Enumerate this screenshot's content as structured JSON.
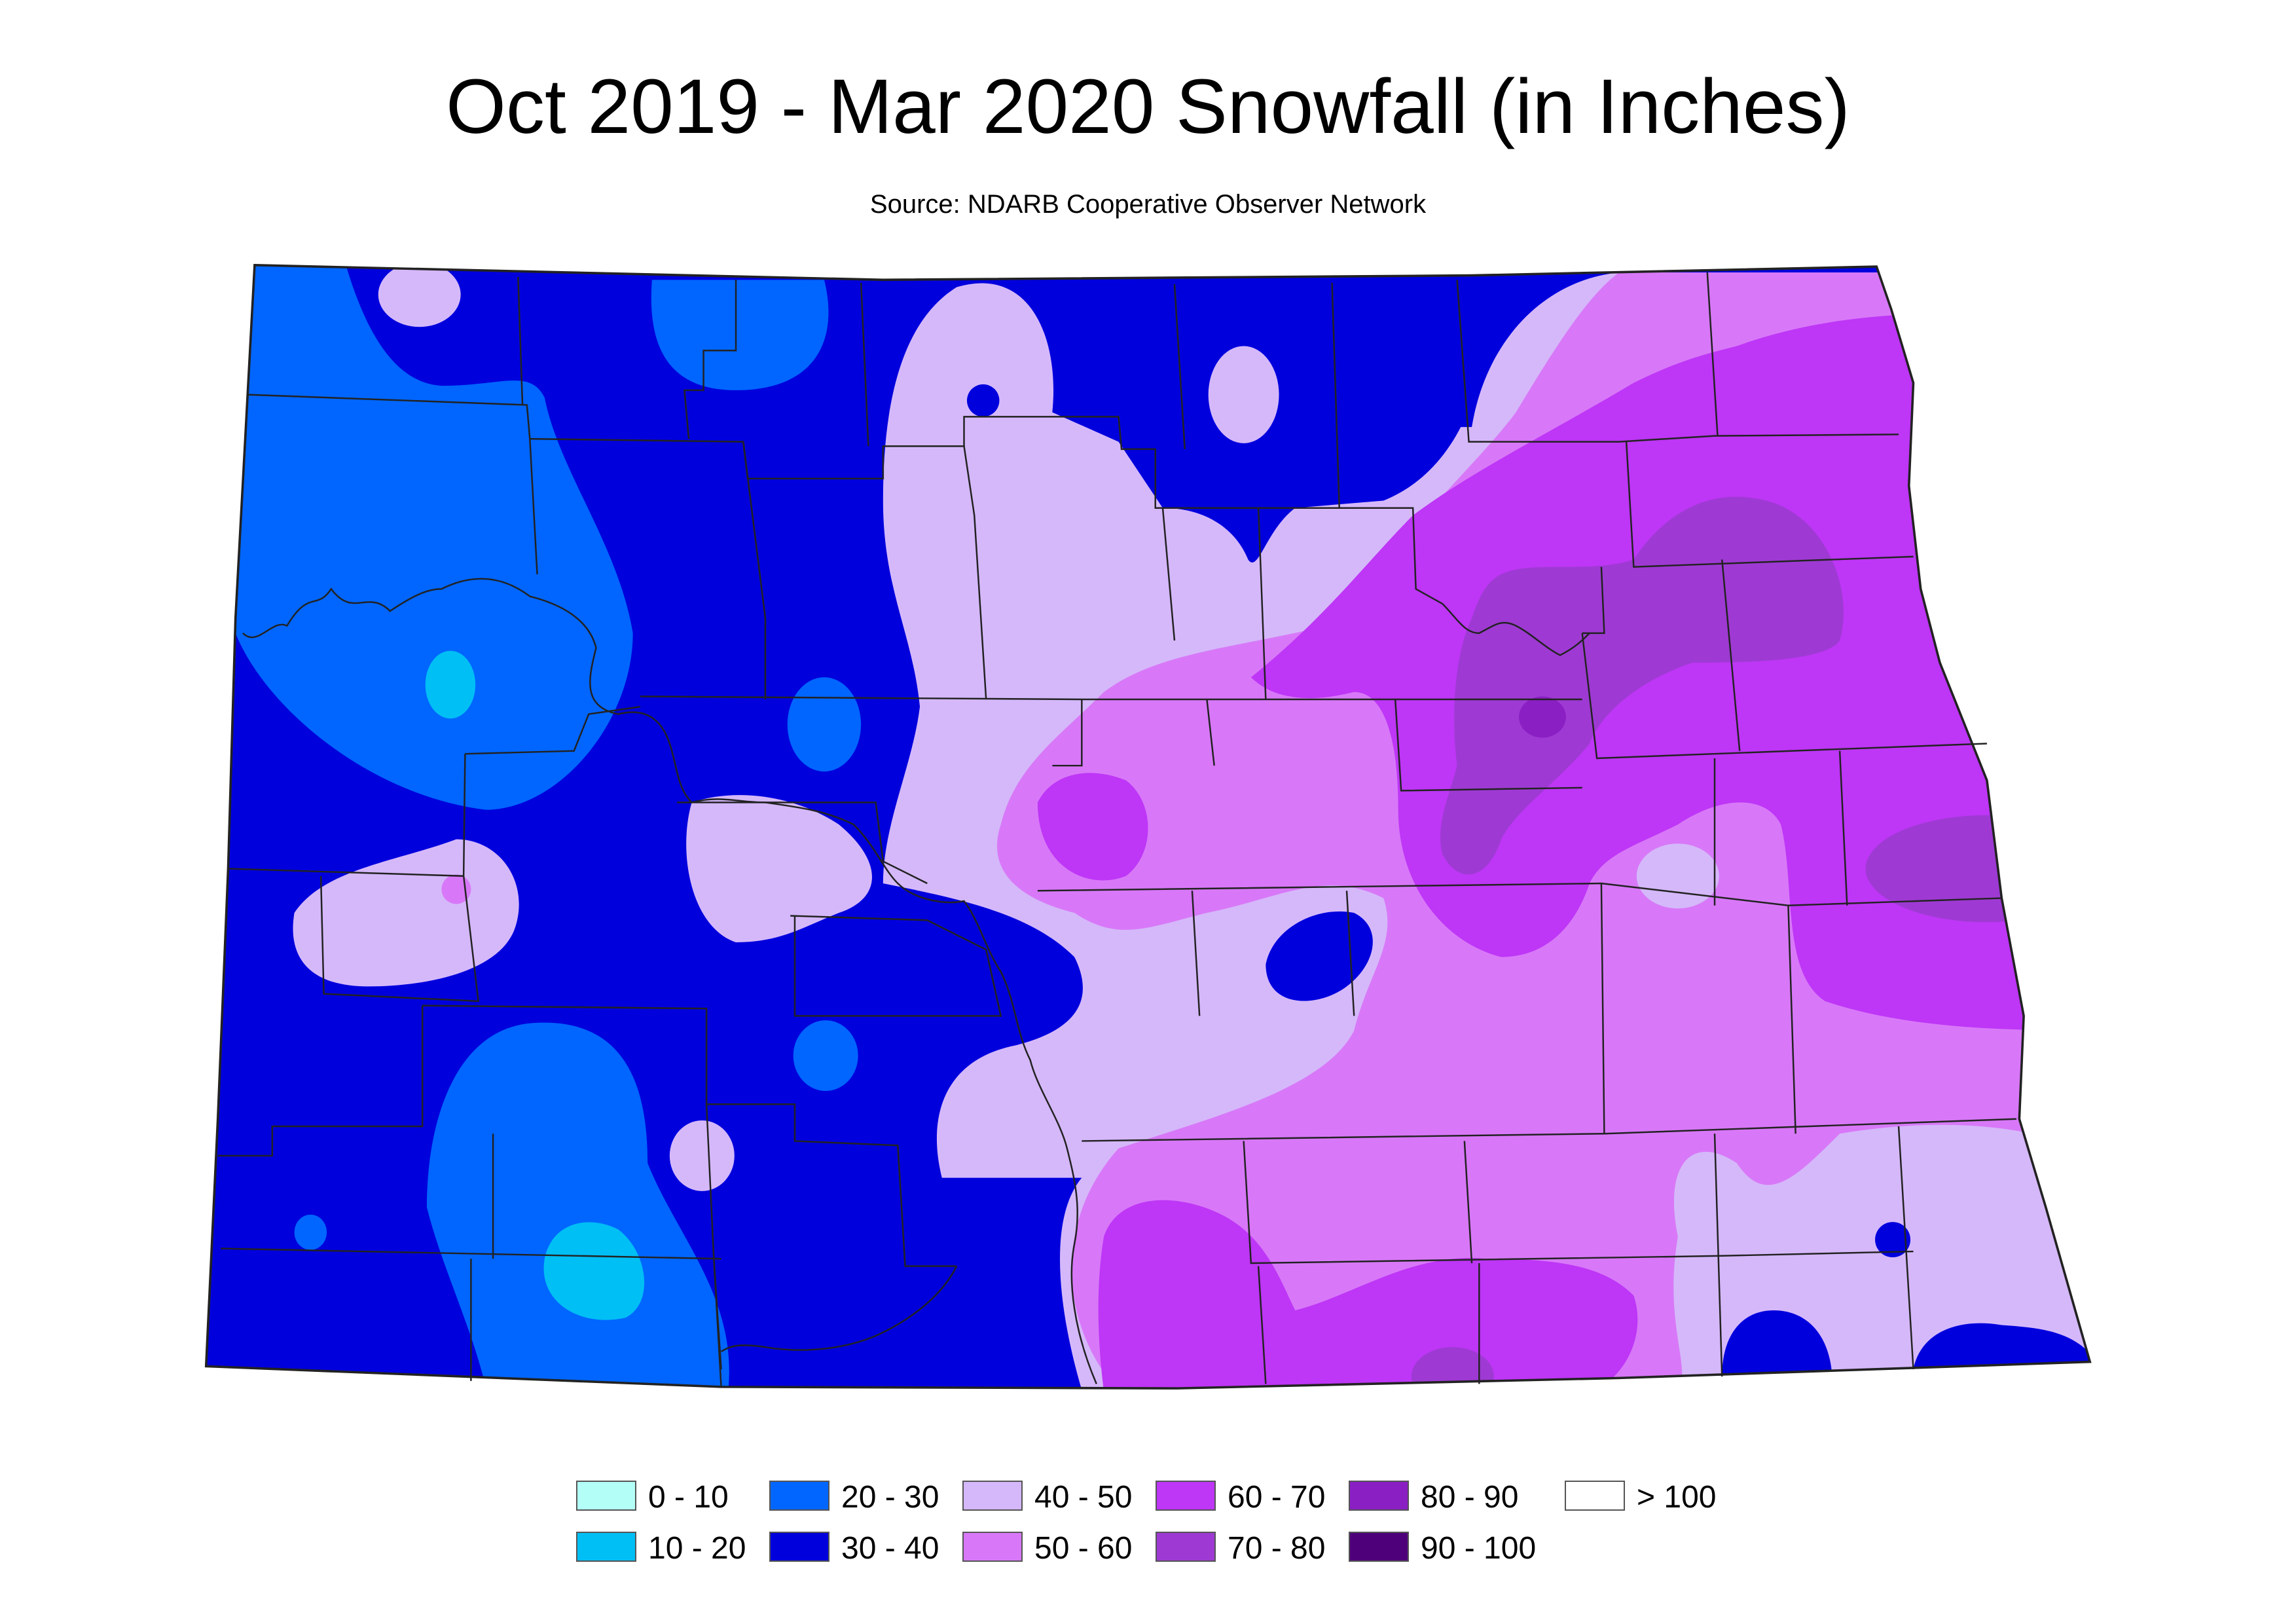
{
  "map": {
    "title": "Oct 2019 - Mar 2020 Snowfall (in Inches)",
    "subtitle": "Source: NDARB Cooperative Observer Network",
    "colors": {
      "0-10": "#b3fff7",
      "10-20": "#00bff5",
      "20-30": "#0066ff",
      "30-40": "#0000dd",
      "40-50": "#d5b8fa",
      "50-60": "#d878f8",
      "60-70": "#be36f6",
      "70-80": "#9e3ad3",
      "80-90": "#8a1fc4",
      "90-100": "#4e007a",
      ">100": "#ffffff"
    }
  },
  "legend": {
    "items": [
      {
        "label": "0 - 10",
        "color": "#b3fff7"
      },
      {
        "label": "10 - 20",
        "color": "#00bff5"
      },
      {
        "label": "20 - 30",
        "color": "#0066ff"
      },
      {
        "label": "30 - 40",
        "color": "#0000dd"
      },
      {
        "label": "40 - 50",
        "color": "#d5b8fa"
      },
      {
        "label": "50 - 60",
        "color": "#d878f8"
      },
      {
        "label": "60 - 70",
        "color": "#be36f6"
      },
      {
        "label": "70 - 80",
        "color": "#9e3ad3"
      },
      {
        "label": "80 - 90",
        "color": "#8a1fc4"
      },
      {
        "label": "90 - 100",
        "color": "#4e007a"
      },
      {
        "label": "> 100",
        "color": "#ffffff"
      }
    ]
  }
}
